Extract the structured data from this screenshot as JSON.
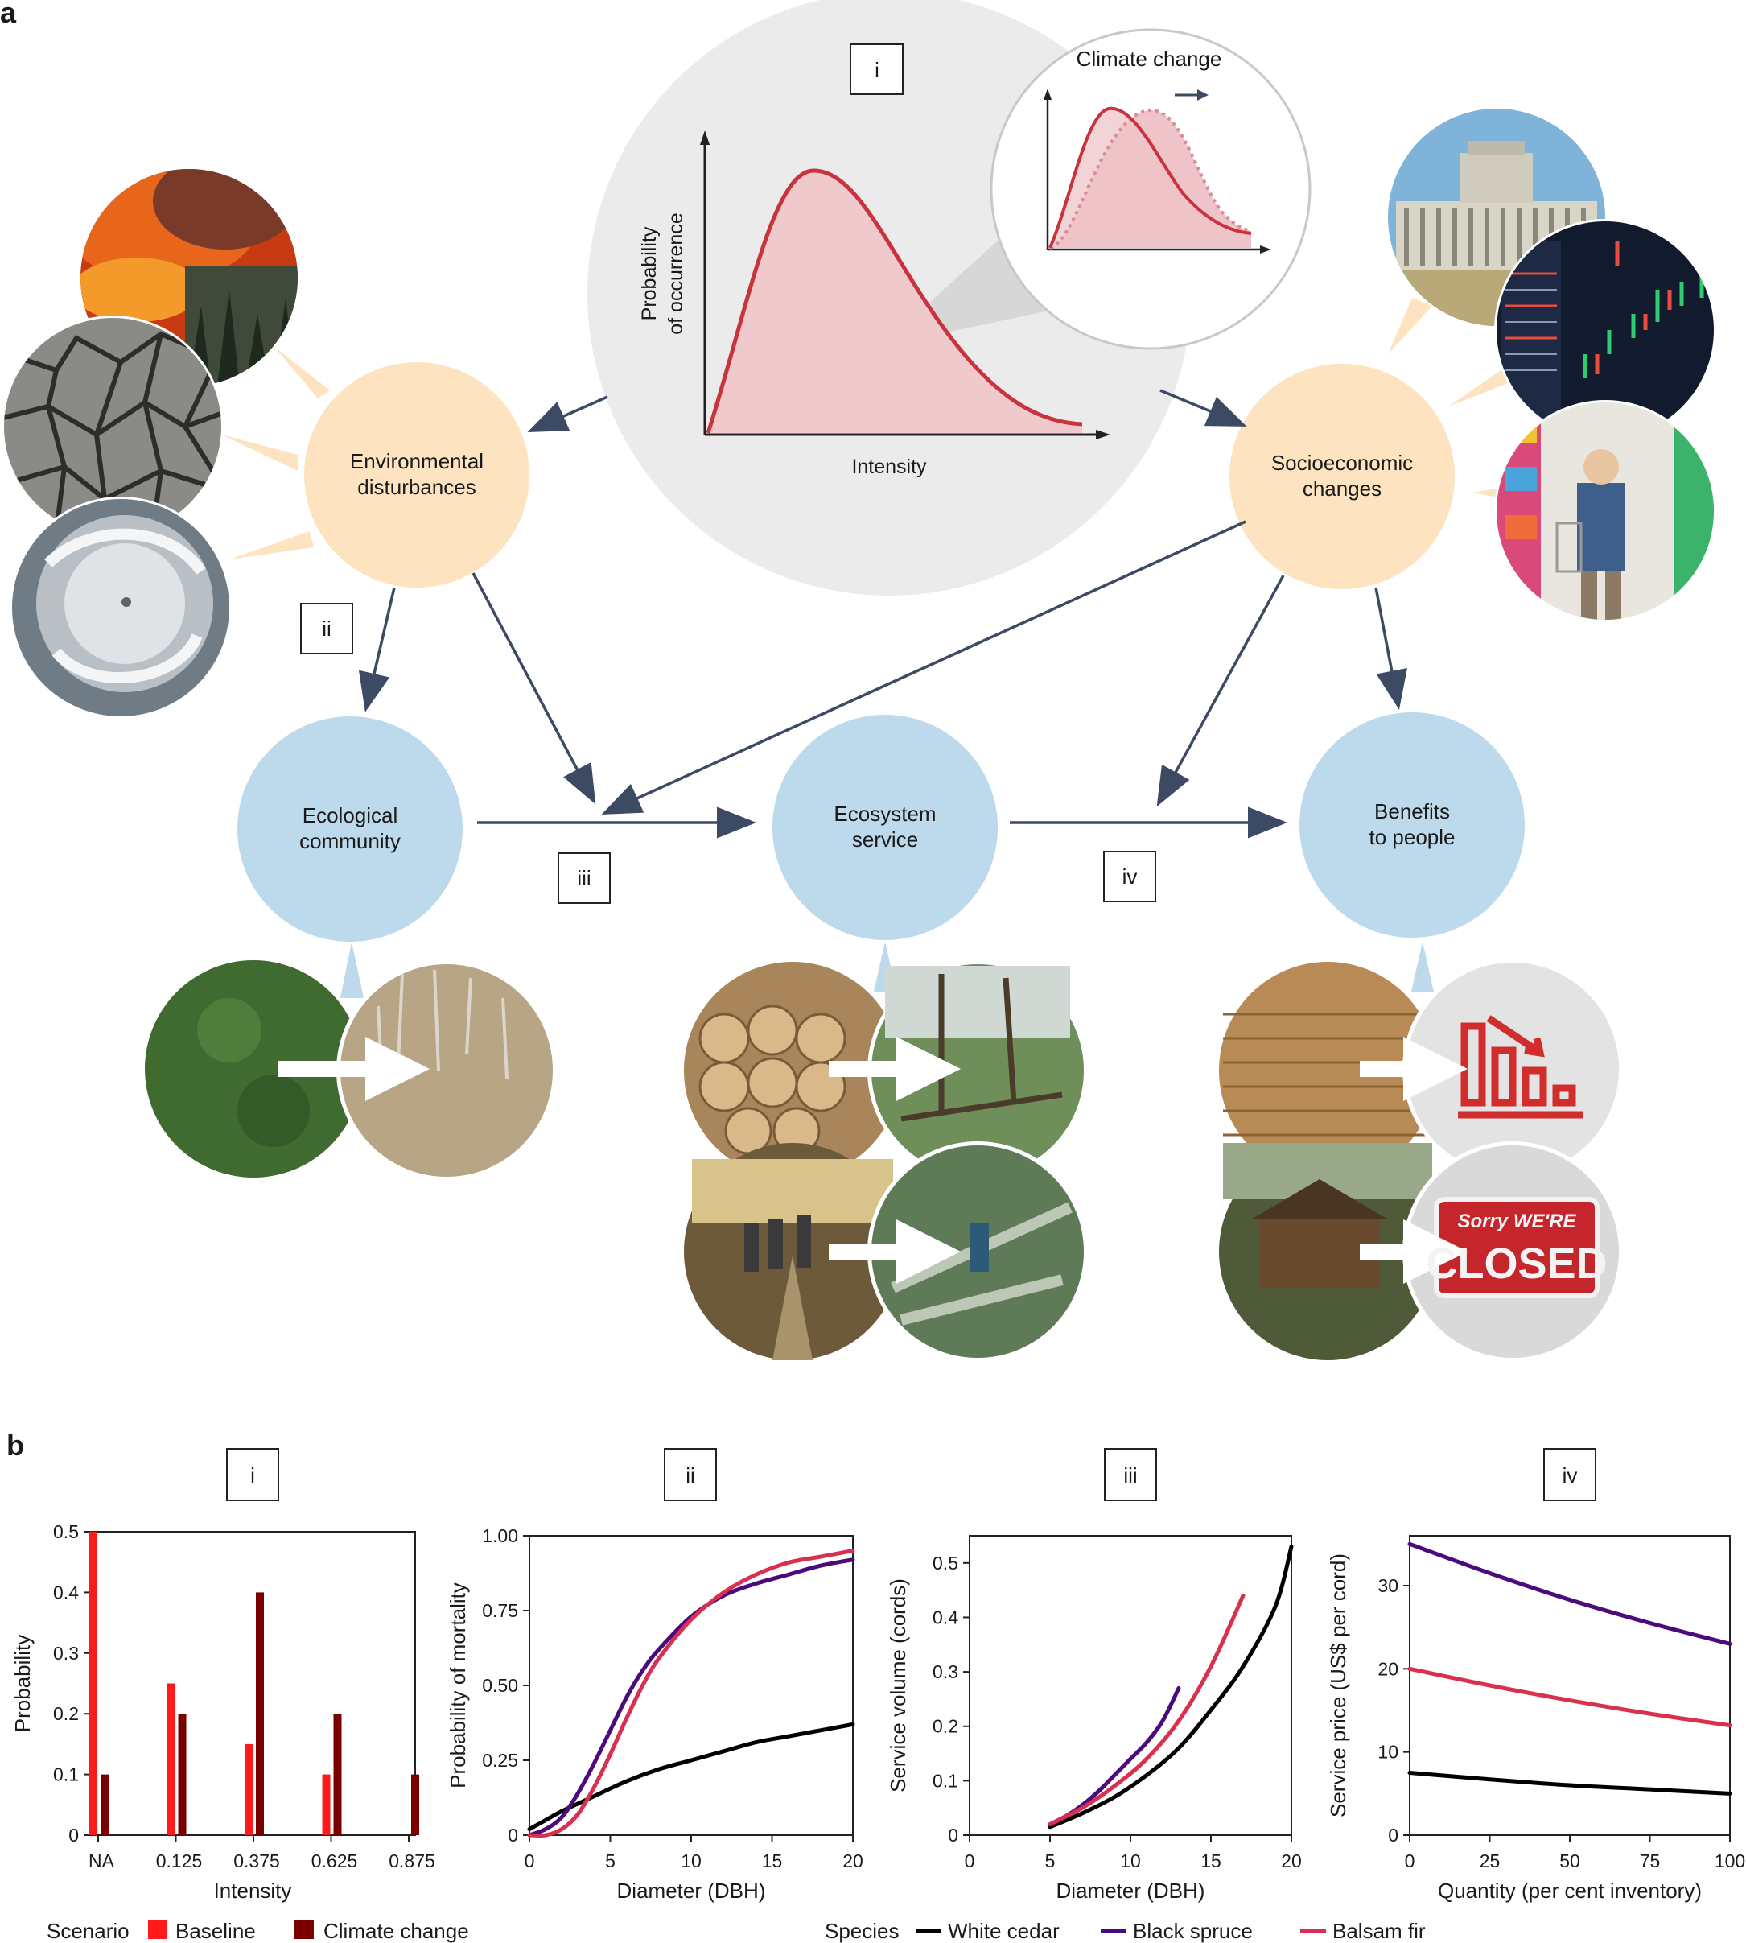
{
  "panel_a": {
    "label": "a",
    "center_box": "i",
    "inset_title": "Climate change",
    "y_axis_label_1": "Probability",
    "y_axis_label_2": "of occurrence",
    "x_axis_label": "Intensity",
    "nodes": {
      "env": [
        "Environmental",
        "disturbances"
      ],
      "socio": [
        "Socioeconomic",
        "changes"
      ],
      "eco_comm": [
        "Ecological",
        "community"
      ],
      "eco_serv": [
        "Ecosystem",
        "service"
      ],
      "benefits": [
        "Benefits",
        "to people"
      ]
    },
    "boxes": {
      "ii": "ii",
      "iii": "iii",
      "iv": "iv"
    },
    "sign_line1": "Sorry WE'RE",
    "sign_line2": "CLOSED"
  },
  "panel_b": {
    "label": "b",
    "legend_scenario": {
      "title": "Scenario",
      "entries": [
        {
          "name": "Baseline",
          "color": "#ff1a1a"
        },
        {
          "name": "Climate change",
          "color": "#7a0000"
        }
      ]
    },
    "legend_species": {
      "title": "Species",
      "entries": [
        {
          "name": "White cedar",
          "color": "#000000"
        },
        {
          "name": "Black spruce",
          "color": "#4b0a7d"
        },
        {
          "name": "Balsam fir",
          "color": "#d9304f"
        }
      ]
    }
  },
  "chart_data": [
    {
      "panel": "i",
      "type": "bar",
      "xlabel": "Intensity",
      "ylabel": "Probability",
      "ylim": [
        0,
        0.5
      ],
      "yticks": [
        "0",
        "0.1",
        "0.2",
        "0.3",
        "0.4",
        "0.5"
      ],
      "categories": [
        "NA",
        "0.125",
        "0.375",
        "0.625",
        "0.875"
      ],
      "series": [
        {
          "name": "Baseline",
          "color": "#ff1a1a",
          "values": [
            0.5,
            0.25,
            0.15,
            0.1,
            0
          ]
        },
        {
          "name": "Climate change",
          "color": "#7a0000",
          "values": [
            0.1,
            0.2,
            0.4,
            0.2,
            0.1
          ]
        }
      ]
    },
    {
      "panel": "ii",
      "type": "line",
      "xlabel": "Diameter (DBH)",
      "ylabel": "Probability of mortality",
      "xlim": [
        0,
        20
      ],
      "ylim": [
        0,
        1
      ],
      "xticks": [
        "0",
        "5",
        "10",
        "15",
        "20"
      ],
      "yticks": [
        "0",
        "0.25",
        "0.50",
        "0.75",
        "1.00"
      ],
      "series": [
        {
          "name": "White cedar",
          "color": "#000000",
          "x": [
            0,
            1,
            2,
            4,
            6,
            8,
            10,
            12,
            14,
            16,
            18,
            20
          ],
          "y": [
            0.02,
            0.05,
            0.08,
            0.13,
            0.18,
            0.22,
            0.25,
            0.28,
            0.31,
            0.33,
            0.35,
            0.37
          ]
        },
        {
          "name": "Black spruce",
          "color": "#4b0a7d",
          "x": [
            0,
            1,
            2,
            3,
            4,
            5,
            6,
            7,
            8,
            10,
            12,
            14,
            16,
            18,
            20
          ],
          "y": [
            0.0,
            0.02,
            0.06,
            0.14,
            0.24,
            0.35,
            0.46,
            0.55,
            0.62,
            0.73,
            0.8,
            0.84,
            0.87,
            0.9,
            0.92
          ]
        },
        {
          "name": "Balsam fir",
          "color": "#d9304f",
          "x": [
            0,
            1,
            2,
            3,
            4,
            5,
            6,
            7,
            8,
            10,
            12,
            14,
            16,
            18,
            20
          ],
          "y": [
            0.0,
            0.0,
            0.02,
            0.07,
            0.16,
            0.27,
            0.39,
            0.5,
            0.59,
            0.72,
            0.81,
            0.87,
            0.91,
            0.93,
            0.95
          ]
        }
      ]
    },
    {
      "panel": "iii",
      "type": "line",
      "xlabel": "Diameter (DBH)",
      "ylabel": "Service volume (cords)",
      "xlim": [
        0,
        20
      ],
      "ylim": [
        0,
        0.55
      ],
      "xticks": [
        "0",
        "5",
        "10",
        "15",
        "20"
      ],
      "yticks": [
        "0",
        "0.1",
        "0.2",
        "0.3",
        "0.4",
        "0.5"
      ],
      "series": [
        {
          "name": "White cedar",
          "color": "#000000",
          "x": [
            5,
            7,
            9,
            11,
            13,
            15,
            17,
            19,
            20
          ],
          "y": [
            0.015,
            0.04,
            0.07,
            0.11,
            0.16,
            0.23,
            0.31,
            0.42,
            0.53
          ]
        },
        {
          "name": "Black spruce",
          "color": "#4b0a7d",
          "x": [
            5,
            6,
            7,
            8,
            9,
            10,
            11,
            12,
            13
          ],
          "y": [
            0.02,
            0.035,
            0.055,
            0.08,
            0.11,
            0.14,
            0.17,
            0.21,
            0.27
          ]
        },
        {
          "name": "Balsam fir",
          "color": "#d9304f",
          "x": [
            5,
            7,
            9,
            11,
            13,
            15,
            17
          ],
          "y": [
            0.02,
            0.05,
            0.09,
            0.14,
            0.21,
            0.31,
            0.44
          ]
        }
      ]
    },
    {
      "panel": "iv",
      "type": "line",
      "xlabel": "Quantity (per cent inventory)",
      "ylabel": "Service price (US$ per cord)",
      "xlim": [
        0,
        100
      ],
      "ylim": [
        0,
        36
      ],
      "xticks": [
        "0",
        "25",
        "50",
        "75",
        "100"
      ],
      "yticks": [
        "0",
        "10",
        "20",
        "30"
      ],
      "series": [
        {
          "name": "White cedar",
          "color": "#000000",
          "x": [
            0,
            25,
            50,
            75,
            100
          ],
          "y": [
            7.5,
            6.7,
            6.0,
            5.5,
            5.0
          ]
        },
        {
          "name": "Black spruce",
          "color": "#4b0a7d",
          "x": [
            0,
            25,
            50,
            75,
            100
          ],
          "y": [
            35,
            31.5,
            28.3,
            25.5,
            23
          ]
        },
        {
          "name": "Balsam fir",
          "color": "#d9304f",
          "x": [
            0,
            25,
            50,
            75,
            100
          ],
          "y": [
            20,
            18,
            16.2,
            14.6,
            13.2
          ]
        }
      ]
    }
  ]
}
